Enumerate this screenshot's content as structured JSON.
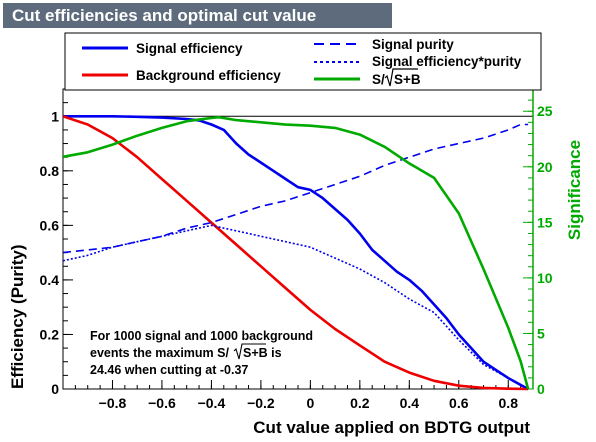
{
  "chart_data": {
    "type": "line",
    "title": "Cut efficiencies and optimal cut value",
    "xlabel": "Cut value applied on BDTG output",
    "ylabel": "Efficiency (Purity)",
    "y2label": "Significance",
    "xlim": [
      -1.0,
      0.9
    ],
    "ylim": [
      0,
      1.1
    ],
    "y2lim": [
      0,
      27.0
    ],
    "x_ticks": [
      -0.8,
      -0.6,
      -0.4,
      -0.2,
      0,
      0.2,
      0.4,
      0.6,
      0.8
    ],
    "x_tick_labels": [
      "−0.8",
      "−0.6",
      "−0.4",
      "−0.2",
      "0",
      "0.2",
      "0.4",
      "0.6",
      "0.8"
    ],
    "y_ticks": [
      0,
      0.2,
      0.4,
      0.6,
      0.8,
      1
    ],
    "y_tick_labels": [
      "0",
      "0.2",
      "0.4",
      "0.6",
      "0.8",
      "1"
    ],
    "y2_ticks": [
      0,
      5,
      10,
      15,
      20,
      25
    ],
    "y2_tick_labels": [
      "0",
      "5",
      "10",
      "15",
      "20",
      "25"
    ],
    "series": [
      {
        "name": "Signal efficiency",
        "axis": "left",
        "color": "#0000ee",
        "style": "solid",
        "x": [
          -1.0,
          -0.9,
          -0.8,
          -0.7,
          -0.6,
          -0.5,
          -0.45,
          -0.4,
          -0.35,
          -0.3,
          -0.25,
          -0.2,
          -0.15,
          -0.1,
          -0.05,
          0.0,
          0.05,
          0.1,
          0.15,
          0.2,
          0.25,
          0.3,
          0.35,
          0.4,
          0.45,
          0.5,
          0.55,
          0.6,
          0.65,
          0.7,
          0.75,
          0.8,
          0.85,
          0.88
        ],
        "y": [
          1.0,
          1.0,
          1.0,
          0.998,
          0.995,
          0.99,
          0.985,
          0.97,
          0.95,
          0.9,
          0.86,
          0.83,
          0.8,
          0.77,
          0.74,
          0.73,
          0.7,
          0.66,
          0.62,
          0.57,
          0.51,
          0.47,
          0.43,
          0.4,
          0.36,
          0.31,
          0.26,
          0.2,
          0.15,
          0.1,
          0.07,
          0.04,
          0.015,
          0.0
        ]
      },
      {
        "name": "Background efficiency",
        "axis": "left",
        "color": "#ee0000",
        "style": "solid",
        "x": [
          -1.0,
          -0.9,
          -0.8,
          -0.7,
          -0.6,
          -0.5,
          -0.4,
          -0.3,
          -0.2,
          -0.1,
          0.0,
          0.1,
          0.2,
          0.3,
          0.4,
          0.5,
          0.6,
          0.7,
          0.8,
          0.88
        ],
        "y": [
          1.0,
          0.97,
          0.92,
          0.85,
          0.77,
          0.69,
          0.61,
          0.53,
          0.45,
          0.37,
          0.29,
          0.22,
          0.16,
          0.1,
          0.06,
          0.03,
          0.012,
          0.004,
          0.001,
          0.0
        ]
      },
      {
        "name": "Signal purity",
        "axis": "left",
        "color": "#0000ee",
        "style": "dashed",
        "x": [
          -1.0,
          -0.9,
          -0.8,
          -0.7,
          -0.6,
          -0.5,
          -0.4,
          -0.3,
          -0.2,
          -0.1,
          0.0,
          0.1,
          0.2,
          0.3,
          0.4,
          0.5,
          0.6,
          0.7,
          0.8,
          0.85,
          0.88
        ],
        "y": [
          0.5,
          0.51,
          0.52,
          0.54,
          0.56,
          0.59,
          0.61,
          0.64,
          0.67,
          0.69,
          0.72,
          0.75,
          0.78,
          0.82,
          0.85,
          0.88,
          0.9,
          0.92,
          0.95,
          0.97,
          0.97
        ]
      },
      {
        "name": "Signal efficiency*purity",
        "axis": "left",
        "color": "#0000ee",
        "style": "dotted",
        "x": [
          -1.0,
          -0.9,
          -0.8,
          -0.7,
          -0.6,
          -0.5,
          -0.4,
          -0.3,
          -0.2,
          -0.1,
          0.0,
          0.1,
          0.2,
          0.3,
          0.4,
          0.5,
          0.6,
          0.7,
          0.8,
          0.88
        ],
        "y": [
          0.47,
          0.49,
          0.52,
          0.54,
          0.56,
          0.58,
          0.6,
          0.58,
          0.56,
          0.54,
          0.52,
          0.48,
          0.44,
          0.39,
          0.33,
          0.28,
          0.18,
          0.09,
          0.04,
          0.0
        ]
      },
      {
        "name": "S/√S+B",
        "axis": "right",
        "color": "#00aa00",
        "style": "solid",
        "x": [
          -1.0,
          -0.9,
          -0.8,
          -0.7,
          -0.6,
          -0.5,
          -0.4,
          -0.37,
          -0.3,
          -0.2,
          -0.1,
          0.0,
          0.1,
          0.2,
          0.3,
          0.4,
          0.5,
          0.6,
          0.7,
          0.8,
          0.85,
          0.88
        ],
        "y": [
          20.9,
          21.3,
          22.0,
          22.8,
          23.5,
          24.1,
          24.4,
          24.46,
          24.2,
          24.0,
          23.8,
          23.7,
          23.5,
          22.9,
          21.8,
          20.3,
          19.0,
          15.8,
          10.8,
          5.5,
          2.5,
          0.0
        ]
      }
    ],
    "legend": {
      "left": [
        "Signal efficiency",
        "Background efficiency"
      ],
      "right": [
        "Signal purity",
        "Signal efficiency*purity",
        "S/√S+B"
      ]
    },
    "annotation": {
      "line1": "For 1000 signal and 1000 background",
      "line2_prefix": "events the maximum S/",
      "line2_sqrt": "S+B",
      "line2_suffix": " is",
      "line3": "24.46 when cutting at -0.37"
    },
    "legend_sqrt_prefix": "S/",
    "legend_sqrt_body": "S+B"
  }
}
